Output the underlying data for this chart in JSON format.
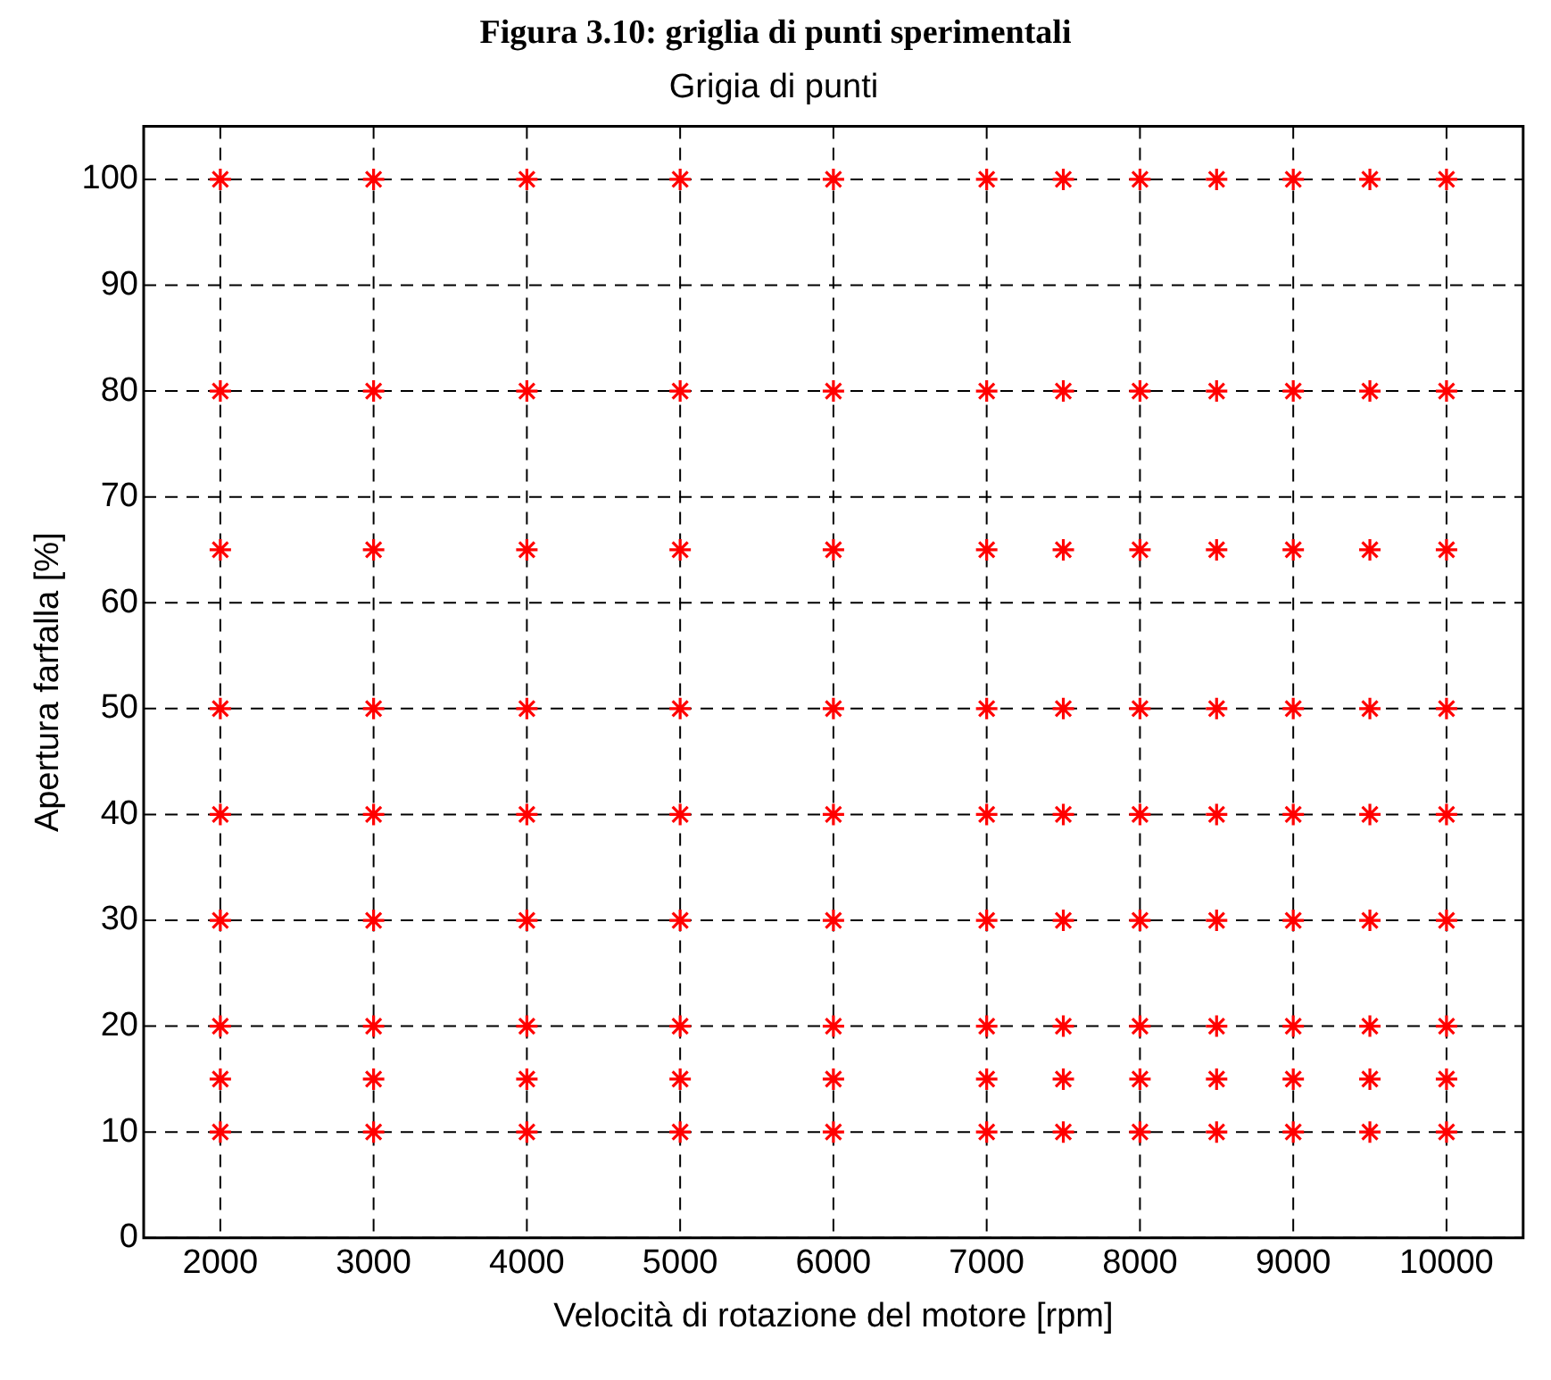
{
  "chart_data": {
    "type": "scatter",
    "title": "Grigia di punti",
    "xlabel": "Velocità di rotazione del motore [rpm]",
    "ylabel": "Apertura farfalla [%]",
    "annotations": [
      "Figura 3.10: griglia di punti sperimentali"
    ],
    "x": [
      2000,
      3000,
      4000,
      5000,
      6000,
      7000,
      7500,
      8000,
      8500,
      9000,
      9500,
      10000,
      2000,
      3000,
      4000,
      5000,
      6000,
      7000,
      7500,
      8000,
      8500,
      9000,
      9500,
      10000,
      2000,
      3000,
      4000,
      5000,
      6000,
      7000,
      7500,
      8000,
      8500,
      9000,
      9500,
      10000,
      2000,
      3000,
      4000,
      5000,
      6000,
      7000,
      7500,
      8000,
      8500,
      9000,
      9500,
      10000,
      2000,
      3000,
      4000,
      5000,
      6000,
      7000,
      7500,
      8000,
      8500,
      9000,
      9500,
      10000,
      2000,
      3000,
      4000,
      5000,
      6000,
      7000,
      7500,
      8000,
      8500,
      9000,
      9500,
      10000,
      2000,
      3000,
      4000,
      5000,
      6000,
      7000,
      7500,
      8000,
      8500,
      9000,
      9500,
      10000,
      2000,
      3000,
      4000,
      5000,
      6000,
      7000,
      7500,
      8000,
      8500,
      9000,
      9500,
      10000,
      2000,
      3000,
      4000,
      5000,
      6000,
      7000,
      7500,
      8000,
      8500,
      9000,
      9500,
      10000
    ],
    "series": [
      {
        "color": "#ff0000",
        "values": [
          10,
          10,
          10,
          10,
          10,
          10,
          10,
          10,
          10,
          10,
          10,
          10,
          15,
          15,
          15,
          15,
          15,
          15,
          15,
          15,
          15,
          15,
          15,
          15,
          20,
          20,
          20,
          20,
          20,
          20,
          20,
          20,
          20,
          20,
          20,
          20,
          30,
          30,
          30,
          30,
          30,
          30,
          30,
          30,
          30,
          30,
          30,
          30,
          40,
          40,
          40,
          40,
          40,
          40,
          40,
          40,
          40,
          40,
          40,
          40,
          50,
          50,
          50,
          50,
          50,
          50,
          50,
          50,
          50,
          50,
          50,
          50,
          65,
          65,
          65,
          65,
          65,
          65,
          65,
          65,
          65,
          65,
          65,
          65,
          80,
          80,
          80,
          80,
          80,
          80,
          80,
          80,
          80,
          80,
          80,
          80,
          100,
          100,
          100,
          100,
          100,
          100,
          100,
          100,
          100,
          100,
          100,
          100
        ]
      }
    ],
    "xlim": [
      1500,
      10500
    ],
    "xticks": [
      2000,
      3000,
      4000,
      5000,
      6000,
      7000,
      8000,
      9000,
      10000
    ],
    "ylim": [
      0,
      105
    ],
    "yticks": [
      0,
      10,
      20,
      30,
      40,
      50,
      60,
      70,
      80,
      90,
      100
    ],
    "grid": true,
    "legend": false,
    "marker": "cross"
  }
}
